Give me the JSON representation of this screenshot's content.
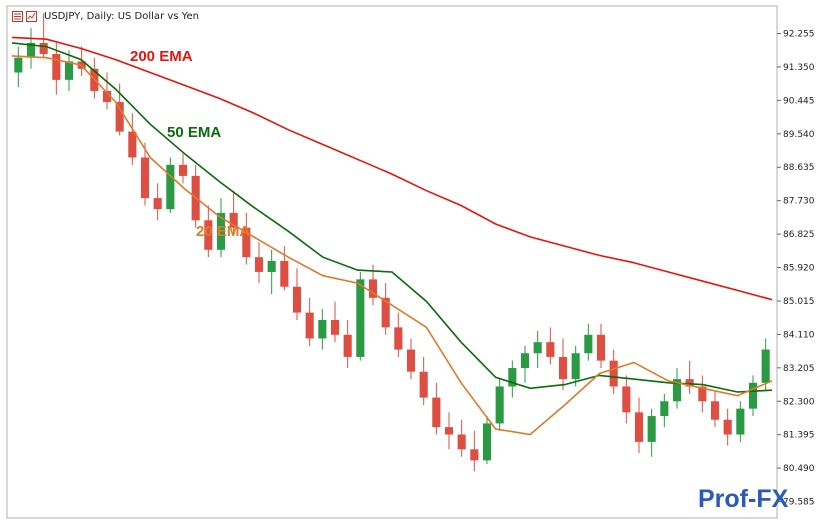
{
  "header": {
    "title": "USDJPY, Daily:  US Dollar vs Yen",
    "icons": [
      "chart-list-icon",
      "chart-window-icon"
    ]
  },
  "watermark": "Prof-FX",
  "colors": {
    "ema200": "#e8140c",
    "ema50": "#0a6c0a",
    "ema20": "#e07a28",
    "bull": "#2b9a45",
    "bear": "#dd4f42",
    "logo": "#2a5bb8"
  },
  "chart_data": {
    "type": "line",
    "title": "USDJPY, Daily:  US Dollar vs Yen",
    "ylim": [
      79.14,
      93.0
    ],
    "yticks": [
      "92.255",
      "91.350",
      "90.445",
      "89.540",
      "88.635",
      "87.730",
      "86.825",
      "85.920",
      "85.015",
      "84.110",
      "83.205",
      "82.300",
      "81.395",
      "80.490",
      "79.585"
    ],
    "x": [
      0,
      7,
      14,
      21,
      28,
      35,
      42,
      49,
      56,
      63,
      70,
      77,
      84,
      91,
      98,
      105,
      112,
      119,
      126,
      133,
      140,
      147,
      154
    ],
    "series": [
      {
        "name": "200 EMA",
        "values": [
          92.15,
          92.1,
          91.85,
          91.55,
          91.2,
          90.85,
          90.5,
          90.1,
          89.65,
          89.25,
          88.85,
          88.45,
          88.0,
          87.6,
          87.1,
          86.75,
          86.5,
          86.25,
          86.05,
          85.8,
          85.55,
          85.3,
          85.05
        ]
      },
      {
        "name": "50 EMA",
        "values": [
          92.0,
          91.9,
          91.55,
          90.75,
          89.8,
          89.0,
          88.25,
          87.55,
          86.9,
          86.2,
          85.85,
          85.8,
          85.0,
          83.9,
          82.95,
          82.65,
          82.75,
          83.0,
          82.9,
          82.8,
          82.75,
          82.55,
          82.6
        ]
      },
      {
        "name": "20 EMA",
        "values": [
          91.65,
          91.6,
          91.4,
          90.4,
          88.9,
          88.05,
          87.3,
          86.75,
          86.2,
          85.7,
          85.5,
          84.9,
          84.3,
          82.8,
          81.55,
          81.4,
          82.2,
          83.05,
          83.35,
          82.85,
          82.65,
          82.45,
          82.85
        ]
      }
    ],
    "ohlc_note": "",
    "ohlc": [
      [
        91.2,
        91.9,
        90.8,
        91.6
      ],
      [
        91.6,
        92.4,
        91.3,
        92.0
      ],
      [
        92.0,
        92.8,
        91.6,
        91.7
      ],
      [
        91.7,
        92.0,
        90.6,
        91.0
      ],
      [
        91.0,
        91.8,
        90.7,
        91.5
      ],
      [
        91.5,
        91.9,
        91.1,
        91.3
      ],
      [
        91.3,
        91.6,
        90.5,
        90.7
      ],
      [
        90.7,
        91.2,
        90.2,
        90.4
      ],
      [
        90.4,
        90.9,
        89.5,
        89.6
      ],
      [
        89.6,
        90.1,
        88.7,
        88.9
      ],
      [
        88.9,
        89.3,
        87.6,
        87.8
      ],
      [
        87.8,
        88.2,
        87.2,
        87.5
      ],
      [
        87.5,
        88.9,
        87.4,
        88.7
      ],
      [
        88.7,
        89.0,
        88.2,
        88.4
      ],
      [
        88.4,
        88.7,
        87.0,
        87.2
      ],
      [
        87.2,
        87.6,
        86.2,
        86.4
      ],
      [
        86.4,
        87.8,
        86.2,
        87.4
      ],
      [
        87.4,
        88.0,
        86.8,
        87.0
      ],
      [
        87.0,
        87.4,
        86.0,
        86.2
      ],
      [
        86.2,
        86.6,
        85.5,
        85.8
      ],
      [
        85.8,
        86.4,
        85.2,
        86.1
      ],
      [
        86.1,
        86.5,
        85.3,
        85.4
      ],
      [
        85.4,
        85.9,
        84.5,
        84.7
      ],
      [
        84.7,
        85.1,
        83.8,
        84.0
      ],
      [
        84.0,
        84.8,
        83.7,
        84.5
      ],
      [
        84.5,
        85.0,
        83.9,
        84.1
      ],
      [
        84.1,
        84.5,
        83.2,
        83.5
      ],
      [
        83.5,
        85.8,
        83.4,
        85.6
      ],
      [
        85.6,
        86.0,
        84.9,
        85.1
      ],
      [
        85.1,
        85.5,
        84.1,
        84.3
      ],
      [
        84.3,
        84.7,
        83.5,
        83.7
      ],
      [
        83.7,
        84.0,
        82.9,
        83.1
      ],
      [
        83.1,
        83.5,
        82.2,
        82.4
      ],
      [
        82.4,
        82.8,
        81.4,
        81.6
      ],
      [
        81.6,
        82.0,
        81.0,
        81.4
      ],
      [
        81.4,
        81.8,
        80.8,
        81.0
      ],
      [
        81.0,
        81.5,
        80.4,
        80.7
      ],
      [
        80.7,
        81.9,
        80.6,
        81.7
      ],
      [
        81.7,
        82.9,
        81.5,
        82.7
      ],
      [
        82.7,
        83.4,
        82.4,
        83.2
      ],
      [
        83.2,
        83.8,
        82.8,
        83.6
      ],
      [
        83.6,
        84.2,
        83.2,
        83.9
      ],
      [
        83.9,
        84.3,
        83.3,
        83.5
      ],
      [
        83.5,
        84.0,
        82.6,
        82.9
      ],
      [
        82.9,
        83.8,
        82.7,
        83.6
      ],
      [
        83.6,
        84.4,
        83.4,
        84.1
      ],
      [
        84.1,
        84.4,
        83.2,
        83.4
      ],
      [
        83.4,
        83.7,
        82.5,
        82.7
      ],
      [
        82.7,
        83.0,
        81.7,
        82.0
      ],
      [
        82.0,
        82.4,
        80.9,
        81.2
      ],
      [
        81.2,
        82.1,
        80.8,
        81.9
      ],
      [
        81.9,
        82.5,
        81.6,
        82.3
      ],
      [
        82.3,
        83.2,
        82.1,
        82.9
      ],
      [
        82.9,
        83.4,
        82.5,
        82.7
      ],
      [
        82.7,
        83.0,
        82.0,
        82.3
      ],
      [
        82.3,
        82.6,
        81.6,
        81.8
      ],
      [
        81.8,
        82.1,
        81.1,
        81.4
      ],
      [
        81.4,
        82.3,
        81.2,
        82.1
      ],
      [
        82.1,
        83.0,
        81.9,
        82.8
      ],
      [
        82.8,
        84.0,
        82.6,
        83.7
      ]
    ]
  }
}
